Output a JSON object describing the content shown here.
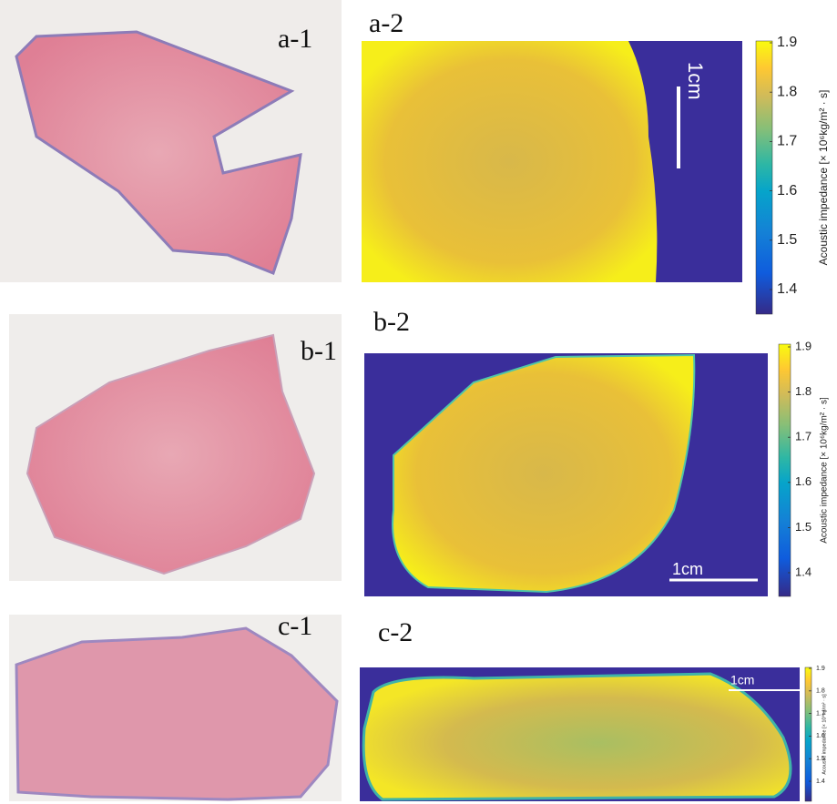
{
  "panels": [
    {
      "histology_label": "a-1",
      "map_label": "a-2",
      "scale_bar": "1cm",
      "colorbar": {
        "label": "Acoustic impedance [× 10⁶kg/m² · s]",
        "ticks": [
          1.4,
          1.5,
          1.6,
          1.7,
          1.8,
          1.9
        ]
      }
    },
    {
      "histology_label": "b-1",
      "map_label": "b-2",
      "scale_bar": "1cm",
      "colorbar": {
        "label": "Acoustic impedance [× 10⁶kg/m² · s]",
        "ticks": [
          1.4,
          1.5,
          1.6,
          1.7,
          1.8,
          1.9
        ]
      }
    },
    {
      "histology_label": "c-1",
      "map_label": "c-2",
      "scale_bar": "1cm",
      "colorbar": {
        "label": "Acoustic impedance [× 10⁶kg/m² · s]",
        "ticks": [
          1.4,
          1.5,
          1.6,
          1.7,
          1.8,
          1.9
        ]
      }
    }
  ]
}
